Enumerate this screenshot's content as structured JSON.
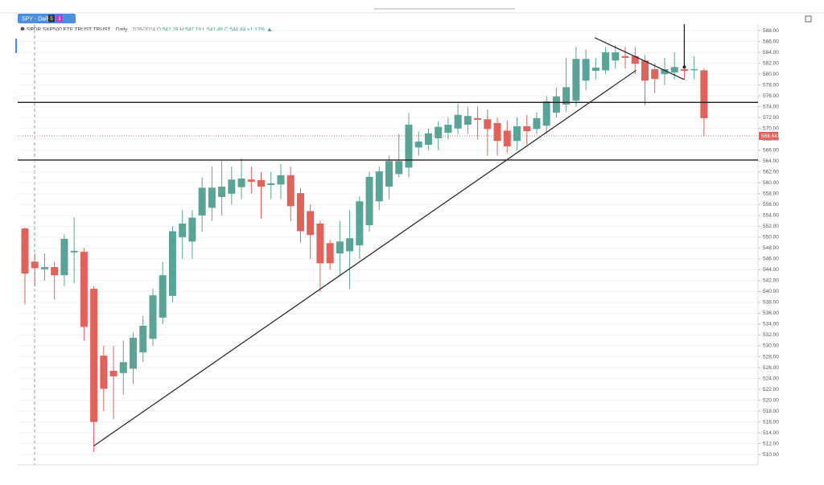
{
  "chart_data": {
    "type": "candlestick",
    "tab": "SPY - Daily",
    "tab_badges": [
      "5",
      "1"
    ],
    "title": "SPDR S&P500 ETF TRUST TRUST...",
    "interval": "Daily",
    "date": "7/26/2024",
    "ohlc": [
      {
        "label": "O:",
        "value": 542.28
      },
      {
        "label": "H:",
        "value": 547.19
      },
      {
        "label": "L:",
        "value": 541.49
      },
      {
        "label": "C:",
        "value": 544.44
      }
    ],
    "change": "+1.12%",
    "up_color": "#5aa497",
    "down_color": "#e0625b",
    "open": [
      551.6,
      545.5,
      544.1,
      544.5,
      543.0,
      547.2,
      547.3,
      540.5,
      528.2,
      525.4,
      525.0,
      525.8,
      528.8,
      531.3,
      535.2,
      539.2,
      550.0,
      549.2,
      554.0,
      555.4,
      557.4,
      558.0,
      559.2,
      560.6,
      560.5,
      559.6,
      559.7,
      561.4,
      558.1,
      554.8,
      552.5,
      548.9,
      547.0,
      547.4,
      548.5,
      552.2,
      556.6,
      559.3,
      561.6,
      562.8,
      566.5,
      567.0,
      568.2,
      569.2,
      570.0,
      570.7,
      571.9,
      571.7,
      571.0,
      569.6,
      567.7,
      570.4,
      569.9,
      570.5,
      572.9,
      574.4,
      575.1,
      578.8,
      580.6,
      580.7,
      582.5,
      583.3,
      583.3,
      582.5,
      580.9,
      580.0,
      580.3,
      580.9,
      580.7,
      580.7
    ],
    "high": [
      551.8,
      547,
      547,
      545.5,
      550.5,
      553.7,
      548,
      541,
      530,
      530,
      531,
      532.5,
      535.5,
      540.5,
      545.5,
      552,
      555,
      555,
      561,
      563,
      564,
      563,
      564.5,
      563,
      562,
      562,
      563.5,
      563,
      559,
      556,
      553,
      549.5,
      553,
      555,
      557.5,
      562,
      563,
      565,
      569,
      572.8,
      569.5,
      570,
      571.3,
      572,
      574.5,
      574,
      574,
      573.5,
      572,
      571.5,
      572,
      572.5,
      573,
      576,
      577.5,
      583,
      585,
      584.5,
      583,
      585,
      585.3,
      585,
      585,
      583.5,
      582,
      583,
      584,
      582,
      583.3,
      581
    ],
    "low": [
      537.6,
      541,
      542,
      538.5,
      541,
      541.5,
      531,
      510.5,
      518,
      516.5,
      521,
      523,
      527,
      530,
      534,
      538,
      546,
      546,
      551,
      553,
      554,
      556,
      557,
      558,
      553.5,
      557,
      557,
      553,
      549,
      546,
      540,
      544,
      543,
      540.5,
      546,
      551,
      555,
      557,
      561,
      561,
      565,
      566,
      566,
      568,
      569,
      569,
      568,
      565,
      565,
      565.5,
      566,
      567,
      569,
      569,
      572,
      573,
      574,
      577,
      579,
      580,
      581,
      581,
      580,
      574.3,
      576.5,
      578,
      579,
      579,
      579,
      568.6
    ],
    "close": [
      543.3,
      544.3,
      544.5,
      543.0,
      549.7,
      547.5,
      533.5,
      516.0,
      522.1,
      524.4,
      527.0,
      531.5,
      533.7,
      539.3,
      543.0,
      551.1,
      552.5,
      553.6,
      559.1,
      559.1,
      559.3,
      560.6,
      560.8,
      560.2,
      559.3,
      559.9,
      561.4,
      555.7,
      551.1,
      550.4,
      545.2,
      545.2,
      549.2,
      549.8,
      556.6,
      561.1,
      562.1,
      564.0,
      564.0,
      570.7,
      567.6,
      569.1,
      570.3,
      570.7,
      572.5,
      572.3,
      571.6,
      569.9,
      567.7,
      566.7,
      570.4,
      569.5,
      571.9,
      575.0,
      575.9,
      577.6,
      582.8,
      582.8,
      581.2,
      584.0,
      584.0,
      583.0,
      581.9,
      578.8,
      579.1,
      580.9,
      581.3,
      580.6,
      580.9,
      571.9
    ],
    "last_price": 568.64,
    "hlines": [
      574.8,
      564.2
    ],
    "trendlines": [
      [
        [
          7.0,
          511.6
        ],
        [
          62.1,
          580.7
        ]
      ],
      [
        [
          57.9,
          586.7
        ],
        [
          67.0,
          579.0
        ]
      ]
    ],
    "arrow": {
      "index": 67,
      "price": 581.3
    },
    "ylim": [
      508.1,
      589.2
    ],
    "yticks": [
      {
        "value": 510,
        "label": "510.00"
      },
      {
        "value": 512,
        "label": "512.00"
      },
      {
        "value": 514,
        "label": "514.00"
      },
      {
        "value": 516,
        "label": "516.00"
      },
      {
        "value": 518,
        "label": "518.00"
      },
      {
        "value": 520,
        "label": "520.00"
      },
      {
        "value": 522,
        "label": "522.00"
      },
      {
        "value": 524,
        "label": "524.00"
      },
      {
        "value": 526,
        "label": "526.00"
      },
      {
        "value": 528,
        "label": "528.00"
      },
      {
        "value": 530,
        "label": "530.00"
      },
      {
        "value": 532,
        "label": "532.00"
      },
      {
        "value": 534,
        "label": "534.00"
      },
      {
        "value": 536,
        "label": "536.00"
      },
      {
        "value": 538,
        "label": "538.00"
      },
      {
        "value": 540,
        "label": "540.00"
      },
      {
        "value": 542,
        "label": "542.00"
      },
      {
        "value": 544,
        "label": "544.00"
      },
      {
        "value": 546,
        "label": "546.00"
      },
      {
        "value": 548,
        "label": "548.00"
      },
      {
        "value": 550,
        "label": "550.00"
      },
      {
        "value": 552,
        "label": "552.00"
      },
      {
        "value": 554,
        "label": "554.00"
      },
      {
        "value": 556,
        "label": "556.00"
      },
      {
        "value": 558,
        "label": "558.00"
      },
      {
        "value": 560,
        "label": "560.00"
      },
      {
        "value": 562,
        "label": "562.00"
      },
      {
        "value": 564,
        "label": "564.00"
      },
      {
        "value": 566,
        "label": "566.00"
      },
      {
        "value": 568,
        "label": "568.00"
      },
      {
        "value": 570,
        "label": "570.00"
      },
      {
        "value": 572,
        "label": "572.00"
      },
      {
        "value": 574,
        "label": "574.00"
      },
      {
        "value": 576,
        "label": "576.00"
      },
      {
        "value": 578,
        "label": "578.00"
      },
      {
        "value": 580,
        "label": "580.00"
      },
      {
        "value": 582,
        "label": "582.00"
      },
      {
        "value": 584,
        "label": "584.00"
      },
      {
        "value": 586,
        "label": "586.00"
      },
      {
        "value": 588,
        "label": "588.00"
      }
    ],
    "grid": true
  }
}
